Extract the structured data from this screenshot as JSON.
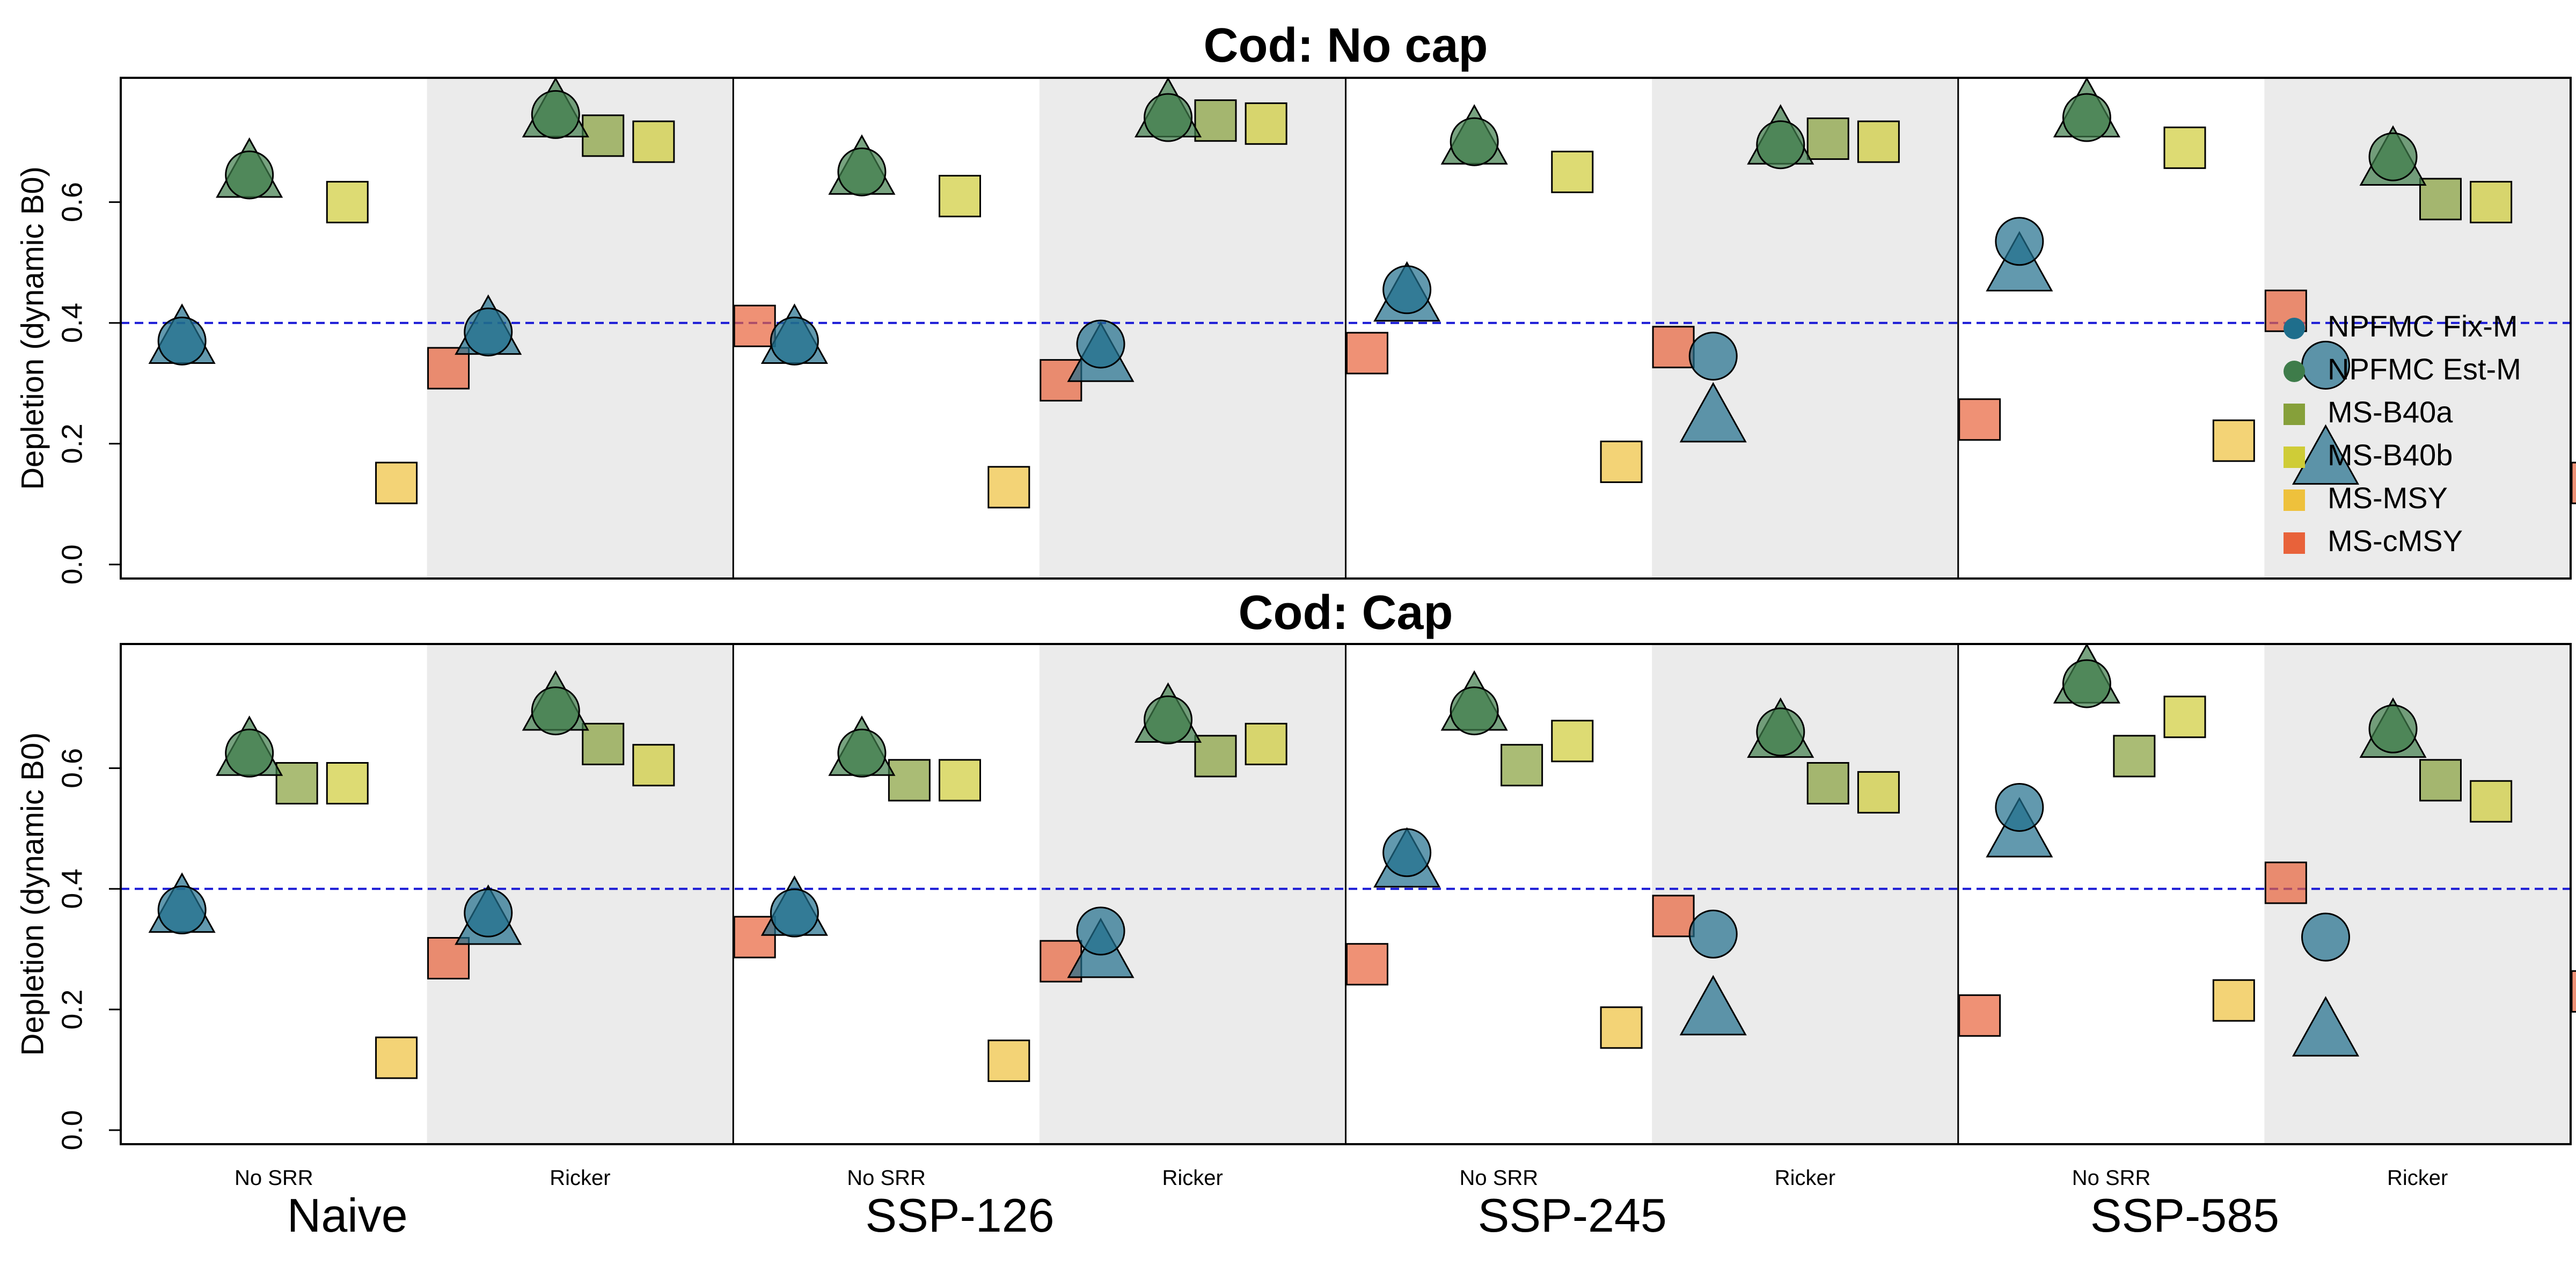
{
  "colors": {
    "NPFMC Fix-M": "#1f6e8c",
    "NPFMC Est-M": "#3e7c4a",
    "MS-B40a": "#86a03a",
    "MS-B40b": "#cfcc37",
    "MS-MSY": "#eec13c",
    "MS-cMSY": "#e8623a",
    "ref_line": "#1a1ad6",
    "ricker_shade": "#ebebeb"
  },
  "chart_data": {
    "type": "scatter",
    "ylabel": "Depletion (dynamic B0)",
    "ylim": [
      0,
      0.8
    ],
    "yticks": [
      "0.0",
      "0.2",
      "0.4",
      "0.6"
    ],
    "reference_line": 0.4,
    "scenarios": [
      "Naive",
      "SSP-126",
      "SSP-245",
      "SSP-585"
    ],
    "srr": [
      "No SRR",
      "Ricker"
    ],
    "legend": {
      "placement": "right",
      "entries": [
        "NPFMC Fix-M",
        "NPFMC Est-M",
        "MS-B40a",
        "MS-B40b",
        "MS-MSY",
        "MS-cMSY"
      ]
    },
    "marker_legend": {
      "circle": "NPFMC Fix-M",
      "triangle": "NPFMC Est-M"
    },
    "panels": [
      {
        "title": "Cod: No cap",
        "points": [
          {
            "scenario": "Naive",
            "srr": "No SRR",
            "circle_fix": 0.37,
            "triangle_fix": 0.37,
            "circle_est": 0.645,
            "triangle_est": 0.645,
            "B40a": null,
            "B40b": 0.6,
            "MSY": 0.135,
            "cMSY": 0.325
          },
          {
            "scenario": "Naive",
            "srr": "Ricker",
            "circle_fix": 0.385,
            "triangle_fix": 0.385,
            "circle_est": 0.745,
            "triangle_est": 0.745,
            "B40a": 0.71,
            "B40b": 0.7,
            "MSY": null,
            "cMSY": 0.395
          },
          {
            "scenario": "SSP-126",
            "srr": "No SRR",
            "circle_fix": 0.37,
            "triangle_fix": 0.37,
            "circle_est": 0.65,
            "triangle_est": 0.65,
            "B40a": null,
            "B40b": 0.61,
            "MSY": 0.128,
            "cMSY": 0.305
          },
          {
            "scenario": "SSP-126",
            "srr": "Ricker",
            "circle_fix": 0.365,
            "triangle_fix": 0.34,
            "circle_est": 0.74,
            "triangle_est": 0.745,
            "B40a": 0.735,
            "B40b": 0.73,
            "MSY": null,
            "cMSY": 0.35
          },
          {
            "scenario": "SSP-245",
            "srr": "No SRR",
            "circle_fix": 0.455,
            "triangle_fix": 0.44,
            "circle_est": 0.7,
            "triangle_est": 0.7,
            "B40a": null,
            "B40b": 0.65,
            "MSY": 0.17,
            "cMSY": 0.36
          },
          {
            "scenario": "SSP-245",
            "srr": "Ricker",
            "circle_fix": 0.345,
            "triangle_fix": 0.24,
            "circle_est": 0.695,
            "triangle_est": 0.7,
            "B40a": 0.705,
            "B40b": 0.7,
            "MSY": null,
            "cMSY": 0.24
          },
          {
            "scenario": "SSP-585",
            "srr": "No SRR",
            "circle_fix": 0.535,
            "triangle_fix": 0.49,
            "circle_est": 0.74,
            "triangle_est": 0.745,
            "B40a": null,
            "B40b": 0.69,
            "MSY": 0.205,
            "cMSY": 0.42
          },
          {
            "scenario": "SSP-585",
            "srr": "Ricker",
            "circle_fix": 0.33,
            "triangle_fix": 0.17,
            "circle_est": 0.675,
            "triangle_est": 0.665,
            "B40a": 0.605,
            "B40b": 0.6,
            "MSY": null,
            "cMSY": 0.135
          }
        ]
      },
      {
        "title": "Cod: Cap",
        "points": [
          {
            "scenario": "Naive",
            "srr": "No SRR",
            "circle_fix": 0.365,
            "triangle_fix": 0.365,
            "circle_est": 0.625,
            "triangle_est": 0.625,
            "B40a": 0.575,
            "B40b": 0.575,
            "MSY": 0.12,
            "cMSY": 0.285
          },
          {
            "scenario": "Naive",
            "srr": "Ricker",
            "circle_fix": 0.36,
            "triangle_fix": 0.345,
            "circle_est": 0.695,
            "triangle_est": 0.7,
            "B40a": 0.64,
            "B40b": 0.605,
            "MSY": null,
            "cMSY": 0.32
          },
          {
            "scenario": "SSP-126",
            "srr": "No SRR",
            "circle_fix": 0.36,
            "triangle_fix": 0.36,
            "circle_est": 0.625,
            "triangle_est": 0.625,
            "B40a": 0.58,
            "B40b": 0.58,
            "MSY": 0.115,
            "cMSY": 0.28
          },
          {
            "scenario": "SSP-126",
            "srr": "Ricker",
            "circle_fix": 0.33,
            "triangle_fix": 0.29,
            "circle_est": 0.68,
            "triangle_est": 0.68,
            "B40a": 0.62,
            "B40b": 0.64,
            "MSY": null,
            "cMSY": 0.275
          },
          {
            "scenario": "SSP-245",
            "srr": "No SRR",
            "circle_fix": 0.46,
            "triangle_fix": 0.44,
            "circle_est": 0.695,
            "triangle_est": 0.7,
            "B40a": 0.605,
            "B40b": 0.645,
            "MSY": 0.17,
            "cMSY": 0.355
          },
          {
            "scenario": "SSP-245",
            "srr": "Ricker",
            "circle_fix": 0.325,
            "triangle_fix": 0.195,
            "circle_est": 0.66,
            "triangle_est": 0.655,
            "B40a": 0.575,
            "B40b": 0.56,
            "MSY": null,
            "cMSY": 0.19
          },
          {
            "scenario": "SSP-585",
            "srr": "No SRR",
            "circle_fix": 0.535,
            "triangle_fix": 0.49,
            "circle_est": 0.74,
            "triangle_est": 0.745,
            "B40a": 0.62,
            "B40b": 0.685,
            "MSY": 0.215,
            "cMSY": 0.41
          },
          {
            "scenario": "SSP-585",
            "srr": "Ricker",
            "circle_fix": 0.32,
            "triangle_fix": 0.16,
            "circle_est": 0.665,
            "triangle_est": 0.655,
            "B40a": 0.58,
            "B40b": 0.545,
            "MSY": null,
            "cMSY": 0.23
          }
        ]
      }
    ]
  }
}
